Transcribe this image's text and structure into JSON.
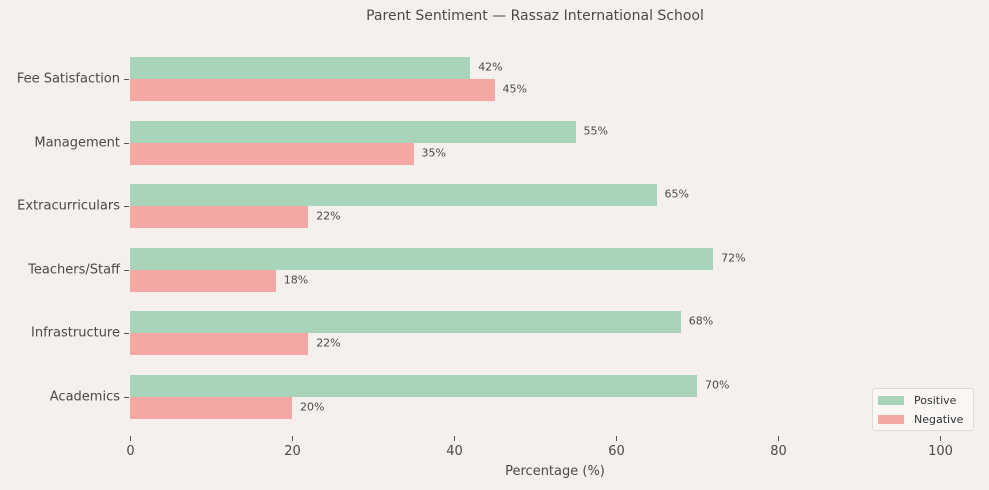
{
  "title": "Parent Sentiment — Rassaz International School",
  "xlabel": "Percentage (%)",
  "colors": {
    "positive": "#a8d5ba",
    "negative": "#f5a7a3",
    "background": "#f5f0ec"
  },
  "legend": {
    "positive_label": "Positive",
    "negative_label": "Negative"
  },
  "xticks": [
    "0",
    "20",
    "40",
    "60",
    "80",
    "100"
  ],
  "chart_data": {
    "type": "bar",
    "orientation": "horizontal",
    "title": "Parent Sentiment — Rassaz International School",
    "xlabel": "Percentage (%)",
    "ylabel": "",
    "xlim": [
      0,
      100
    ],
    "grid": false,
    "legend_position": "lower right",
    "categories": [
      "Fee Satisfaction",
      "Management",
      "Extracurriculars",
      "Teachers/Staff",
      "Infrastructure",
      "Academics"
    ],
    "series": [
      {
        "name": "Positive",
        "color": "#a8d5ba",
        "values": [
          42,
          55,
          65,
          72,
          68,
          70
        ]
      },
      {
        "name": "Negative",
        "color": "#f5a7a3",
        "values": [
          45,
          35,
          22,
          18,
          22,
          20
        ]
      }
    ],
    "data_labels": {
      "Positive": [
        "42%",
        "55%",
        "65%",
        "72%",
        "68%",
        "70%"
      ],
      "Negative": [
        "45%",
        "35%",
        "22%",
        "18%",
        "22%",
        "20%"
      ]
    }
  }
}
